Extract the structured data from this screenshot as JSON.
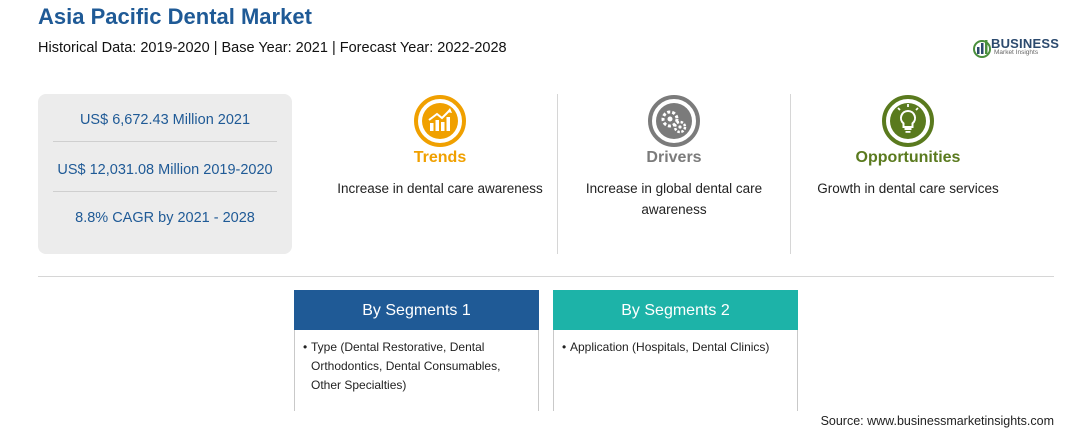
{
  "header": {
    "title": "Asia Pacific Dental Market",
    "subtitle": "Historical Data: 2019-2020 | Base Year: 2021 | Forecast Year: 2022-2028"
  },
  "logo": {
    "brand": "BUSINESS",
    "tagline": "Market Insights",
    "icon": "bar-chart-globe-icon"
  },
  "stats": [
    "US$ 6,672.43 Million 2021",
    "US$ 12,031.08 Million 2019-2020",
    "8.8% CAGR by 2021 - 2028"
  ],
  "columns": [
    {
      "label": "Trends",
      "icon": "trend-chart-icon",
      "color": "#f0a000",
      "description": "Increase in dental care awareness"
    },
    {
      "label": "Drivers",
      "icon": "gears-icon",
      "color": "#7b7b7b",
      "description": "Increase in global dental care awareness"
    },
    {
      "label": "Opportunities",
      "icon": "lightbulb-icon",
      "color": "#5a7a1e",
      "description": "Growth in dental care services"
    }
  ],
  "segments": [
    {
      "title": "By Segments 1",
      "color": "#1f5a96",
      "items": [
        "Type (Dental Restorative, Dental Orthodontics, Dental Consumables, Other Specialties)"
      ]
    },
    {
      "title": "By Segments 2",
      "color": "#1db3a8",
      "items": [
        "Application (Hospitals, Dental Clinics)"
      ]
    }
  ],
  "source": "Source: www.businessmarketinsights.com"
}
